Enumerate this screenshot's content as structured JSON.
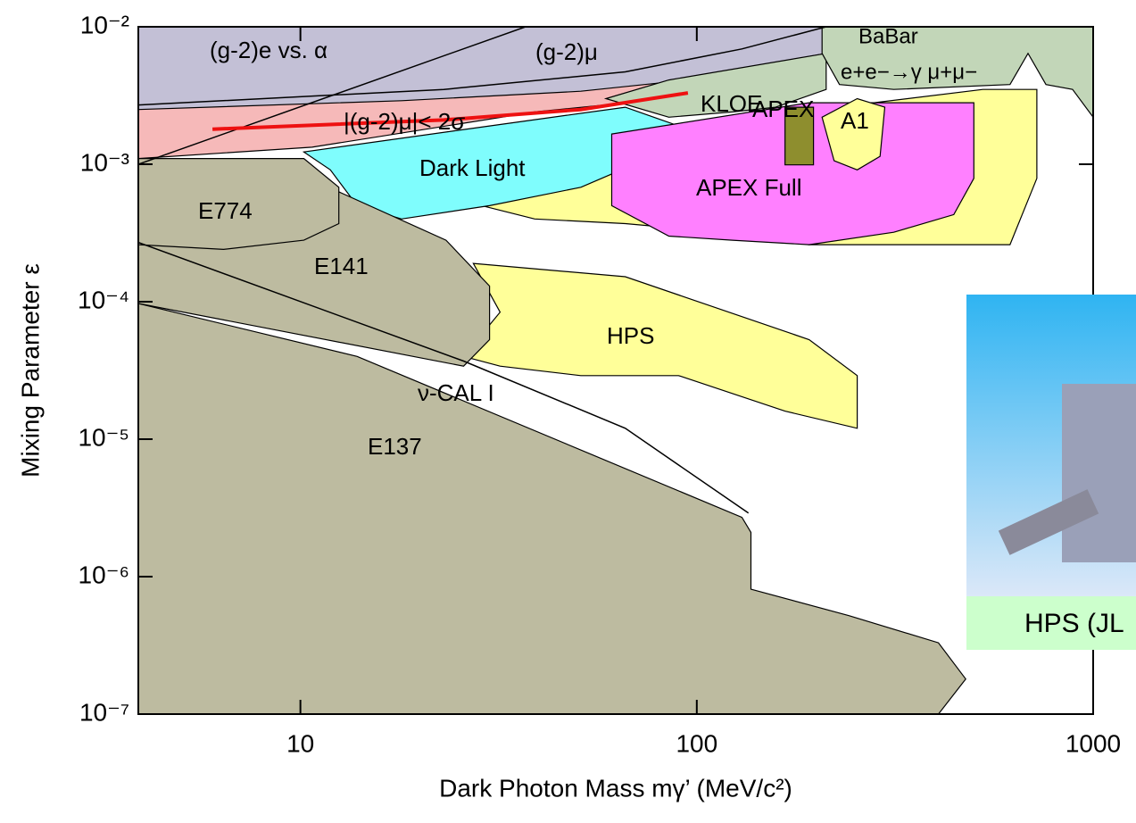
{
  "chart_data": {
    "type": "region",
    "xlabel": "Dark Photon Mass   mγ’  (MeV/c²)",
    "ylabel": "Mixing Parameter   ε",
    "xscale": "log",
    "yscale": "log",
    "xlim": [
      3.9,
      1000
    ],
    "ylim": [
      1e-07,
      0.01
    ],
    "xticks": [
      10,
      100,
      1000
    ],
    "yticks": [
      {
        "value": 0.01,
        "label": "10⁻²"
      },
      {
        "value": 0.001,
        "label": "10⁻³"
      },
      {
        "value": 0.0001,
        "label": "10⁻⁴"
      },
      {
        "value": 1e-05,
        "label": "10⁻⁵"
      },
      {
        "value": 1e-06,
        "label": "10⁻⁶"
      },
      {
        "value": 1e-07,
        "label": "10⁻⁷"
      }
    ],
    "regions": [
      {
        "color": "#c3c0d6",
        "x": [
          3.9,
          212,
          212,
          90,
          23,
          10.7,
          3.9
        ],
        "y": [
          0.01,
          0.01,
          0.0064,
          0.0041,
          0.0022,
          0.00154,
          0.0011
        ]
      },
      {
        "color": "#f6b9b9",
        "x": [
          3.9,
          18,
          51,
          95,
          95,
          39,
          10.7,
          3.9
        ],
        "y": [
          0.0025,
          0.0029,
          0.0034,
          0.0041,
          0.0031,
          0.0024,
          0.00133,
          0.0011
        ]
      },
      {
        "color": "#ffff99",
        "x": [
          28.7,
          63,
          527,
          721,
          721,
          617,
          192,
          115,
          66,
          39,
          28.7
        ],
        "y": [
          0.00063,
          0.00166,
          0.0035,
          0.0035,
          0.00079,
          0.00026,
          0.00026,
          0.00032,
          0.00037,
          0.0004,
          0.0005
        ]
      },
      {
        "color": "#7ffdfd",
        "x": [
          10.2,
          30,
          66,
          90,
          73,
          51,
          30,
          18,
          13.9,
          11.9
        ],
        "y": [
          0.00123,
          0.0019,
          0.0026,
          0.0019,
          0.00106,
          0.00068,
          0.0005,
          0.0004,
          0.0005,
          0.00091
        ]
      },
      {
        "color": "#ff80ff",
        "x": [
          61,
          192,
          500,
          500,
          445,
          314,
          192,
          123,
          85,
          61
        ],
        "y": [
          0.00166,
          0.0028,
          0.0028,
          0.00079,
          0.00043,
          0.00032,
          0.00026,
          0.00028,
          0.0003,
          0.0005
        ]
      },
      {
        "color": "#c2d6b8",
        "x": [
          59,
          85,
          212,
          212,
          158,
          123,
          85
        ],
        "y": [
          0.003,
          0.0041,
          0.0064,
          0.0035,
          0.0026,
          0.0024,
          0.0022
        ]
      },
      {
        "color": "#c2d6b8",
        "x": [
          207,
          1000,
          1000,
          887,
          760,
          685,
          617,
          314,
          229,
          207
        ],
        "y": [
          0.01,
          0.01,
          0.0022,
          0.0035,
          0.0038,
          0.0064,
          0.0038,
          0.0035,
          0.0038,
          0.0064
        ]
      },
      {
        "color": "#8e8e2e",
        "x": [
          167,
          197,
          197,
          167
        ],
        "y": [
          0.0026,
          0.0026,
          0.00099,
          0.00099
        ]
      },
      {
        "color": "#ffff99",
        "x": [
          207,
          254,
          298,
          290,
          254,
          222
        ],
        "y": [
          0.0022,
          0.003,
          0.0026,
          0.00114,
          0.00091,
          0.00106
        ]
      },
      {
        "color": "#ffff99",
        "x": [
          27.3,
          66,
          192,
          254,
          254,
          167,
          90,
          51,
          31.9,
          25.8,
          31.9
        ],
        "y": [
          0.00019,
          0.000152,
          5.3e-05,
          2.9e-05,
          1.2e-05,
          1.6e-05,
          2.9e-05,
          2.9e-05,
          3.4e-05,
          4e-05,
          8.4e-05
        ]
      },
      {
        "color": "#bdbba0",
        "x": [
          3.9,
          13.9,
          130,
          137,
          137,
          242,
          407,
          477,
          407,
          3.9
        ],
        "y": [
          9.7e-05,
          4e-05,
          2.7e-06,
          2.1e-06,
          8.1e-07,
          5.2e-07,
          3.3e-07,
          1.8e-07,
          1e-07,
          1e-07
        ]
      },
      {
        "color": "#bdbba0",
        "x": [
          3.9,
          12.5,
          23.3,
          30,
          30,
          25.8,
          3.9
        ],
        "y": [
          0.00026,
          0.00063,
          0.00028,
          0.00013,
          5.3e-05,
          3.4e-05,
          9.7e-05
        ]
      },
      {
        "color": "#bdbba0",
        "x": [
          3.9,
          10.2,
          12.5,
          12.5,
          10.2,
          6.4,
          3.9
        ],
        "y": [
          0.0011,
          0.0011,
          0.00068,
          0.00037,
          0.00028,
          0.00024,
          0.00026
        ]
      }
    ],
    "lines": [
      {
        "color": "#000000",
        "x": [
          3.9,
          37
        ],
        "y": [
          0.001,
          0.01
        ]
      },
      {
        "color": "#000000",
        "x": [
          3.9,
          23,
          66,
          130,
          212
        ],
        "y": [
          0.0027,
          0.0035,
          0.0047,
          0.0069,
          0.01
        ]
      },
      {
        "color": "#000000",
        "x": [
          3.9,
          25.8,
          66,
          135
        ],
        "y": [
          0.00027,
          3.7e-05,
          1.2e-05,
          2.9e-06
        ]
      },
      {
        "color": "#ee1111",
        "x": [
          6.0,
          23,
          51,
          95
        ],
        "y": [
          0.0018,
          0.0021,
          0.0025,
          0.0033
        ]
      }
    ],
    "labels": [
      "(g-2)e vs. α",
      "(g-2)μ",
      "|(g-2)μ|< 2σ",
      "KLOE",
      "BaBar",
      "e+e−→γ μ+μ−",
      "APEX",
      "A1",
      "APEX Full",
      "Dark Light",
      "E774",
      "E141",
      "HPS",
      "ν-CAL I",
      "E137"
    ]
  },
  "inset": {
    "label": "HPS (JL"
  }
}
